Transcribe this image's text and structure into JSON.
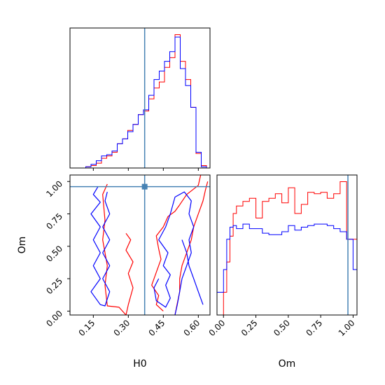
{
  "chart_data": [
    {
      "type": "histogram",
      "panel": "H0 marginal",
      "x_range": [
        0.05,
        0.65
      ],
      "truth": 0.37,
      "bin_edges": [
        0.05,
        0.0725,
        0.095,
        0.1175,
        0.14,
        0.1625,
        0.185,
        0.2075,
        0.23,
        0.2525,
        0.275,
        0.2975,
        0.32,
        0.3425,
        0.365,
        0.3875,
        0.41,
        0.4325,
        0.455,
        0.4775,
        0.5,
        0.5225,
        0.545,
        0.5675,
        0.59,
        0.6125,
        0.635
      ],
      "series": [
        {
          "color": "#ff0000",
          "values": [
            0,
            0,
            0,
            1,
            2,
            4,
            8,
            10,
            13,
            20,
            24,
            31,
            36,
            44,
            47,
            57,
            66,
            71,
            83,
            91,
            110,
            88,
            73,
            50,
            12,
            2
          ]
        },
        {
          "color": "#0000ff",
          "values": [
            0,
            0,
            0,
            1,
            3,
            6,
            10,
            11,
            14,
            20,
            24,
            30,
            36,
            44,
            48,
            60,
            73,
            80,
            88,
            96,
            108,
            82,
            68,
            50,
            13,
            1
          ]
        }
      ]
    },
    {
      "type": "contour",
      "panel": "H0 vs Om",
      "xlabel": "H0",
      "ylabel": "Om",
      "xlim": [
        0.05,
        0.65
      ],
      "ylim": [
        -0.03,
        1.05
      ],
      "xticks": [
        "0.15",
        "0.30",
        "0.45",
        "0.60"
      ],
      "yticks": [
        "0.00",
        "0.25",
        "0.50",
        "0.75",
        "1.00"
      ],
      "truth": {
        "x": 0.37,
        "y": 0.96
      },
      "series": [
        {
          "color": "#ff0000",
          "contours": [
            [
              [
                0.29,
                0.6
              ],
              [
                0.31,
                0.55
              ],
              [
                0.29,
                0.47
              ],
              [
                0.32,
                0.38
              ],
              [
                0.3,
                0.29
              ],
              [
                0.32,
                0.18
              ],
              [
                0.3,
                0.05
              ],
              [
                0.29,
                -0.03
              ]
            ],
            [
              [
                0.21,
                0.98
              ],
              [
                0.19,
                0.9
              ],
              [
                0.2,
                0.7
              ],
              [
                0.19,
                0.55
              ],
              [
                0.21,
                0.35
              ],
              [
                0.2,
                0.2
              ],
              [
                0.21,
                0.04
              ],
              [
                0.26,
                0.03
              ],
              [
                0.29,
                -0.03
              ]
            ],
            [
              [
                0.45,
                0.0
              ],
              [
                0.42,
                0.05
              ],
              [
                0.43,
                0.12
              ],
              [
                0.4,
                0.2
              ],
              [
                0.42,
                0.3
              ],
              [
                0.44,
                0.4
              ],
              [
                0.43,
                0.48
              ],
              [
                0.42,
                0.58
              ],
              [
                0.45,
                0.65
              ],
              [
                0.47,
                0.73
              ],
              [
                0.5,
                0.77
              ],
              [
                0.52,
                0.82
              ],
              [
                0.55,
                0.9
              ],
              [
                0.6,
                0.97
              ],
              [
                0.61,
                1.05
              ]
            ],
            [
              [
                0.5,
                -0.03
              ],
              [
                0.51,
                0.06
              ],
              [
                0.52,
                0.15
              ],
              [
                0.52,
                0.25
              ],
              [
                0.53,
                0.35
              ],
              [
                0.55,
                0.45
              ],
              [
                0.57,
                0.55
              ],
              [
                0.58,
                0.65
              ],
              [
                0.6,
                0.75
              ],
              [
                0.62,
                0.85
              ],
              [
                0.63,
                0.93
              ],
              [
                0.64,
                1.0
              ]
            ]
          ]
        },
        {
          "color": "#0000ff",
          "contours": [
            [
              [
                0.17,
                0.96
              ],
              [
                0.15,
                0.9
              ],
              [
                0.18,
                0.84
              ],
              [
                0.14,
                0.75
              ],
              [
                0.18,
                0.65
              ],
              [
                0.15,
                0.55
              ],
              [
                0.18,
                0.45
              ],
              [
                0.15,
                0.35
              ],
              [
                0.18,
                0.25
              ],
              [
                0.14,
                0.15
              ],
              [
                0.18,
                0.05
              ],
              [
                0.2,
                0.04
              ],
              [
                0.22,
                0.15
              ],
              [
                0.19,
                0.25
              ],
              [
                0.22,
                0.35
              ],
              [
                0.19,
                0.45
              ],
              [
                0.22,
                0.55
              ],
              [
                0.19,
                0.65
              ],
              [
                0.22,
                0.75
              ],
              [
                0.2,
                0.85
              ],
              [
                0.21,
                0.92
              ]
            ],
            [
              [
                0.43,
                0.25
              ],
              [
                0.41,
                0.18
              ],
              [
                0.42,
                0.08
              ],
              [
                0.46,
                0.03
              ],
              [
                0.48,
                0.1
              ],
              [
                0.46,
                0.2
              ],
              [
                0.48,
                0.28
              ],
              [
                0.45,
                0.35
              ],
              [
                0.47,
                0.45
              ],
              [
                0.43,
                0.55
              ],
              [
                0.46,
                0.65
              ],
              [
                0.48,
                0.75
              ],
              [
                0.5,
                0.88
              ],
              [
                0.54,
                0.92
              ],
              [
                0.57,
                0.85
              ],
              [
                0.56,
                0.75
              ],
              [
                0.58,
                0.65
              ],
              [
                0.56,
                0.55
              ],
              [
                0.57,
                0.45
              ],
              [
                0.55,
                0.35
              ],
              [
                0.53,
                0.25
              ],
              [
                0.52,
                0.15
              ],
              [
                0.51,
                0.05
              ],
              [
                0.5,
                -0.03
              ]
            ],
            [
              [
                0.53,
                0.55
              ],
              [
                0.55,
                0.45
              ],
              [
                0.56,
                0.35
              ],
              [
                0.58,
                0.25
              ],
              [
                0.6,
                0.15
              ],
              [
                0.62,
                0.05
              ]
            ]
          ]
        }
      ]
    },
    {
      "type": "histogram",
      "panel": "Om marginal",
      "xlabel": "Om",
      "x_range": [
        -0.05,
        1.03
      ],
      "xticks": [
        "0.00",
        "0.25",
        "0.50",
        "0.75",
        "1.00"
      ],
      "truth": 0.96,
      "bin_edges": [
        -0.05,
        0.0,
        0.025,
        0.05,
        0.075,
        0.1,
        0.15,
        0.2,
        0.25,
        0.3,
        0.35,
        0.4,
        0.45,
        0.5,
        0.55,
        0.6,
        0.65,
        0.7,
        0.75,
        0.8,
        0.85,
        0.9,
        0.95,
        1.0,
        1.03
      ],
      "series": [
        {
          "color": "#ff0000",
          "values": [
            0,
            15,
            35,
            52,
            67,
            72,
            75,
            77,
            64,
            75,
            77,
            80,
            74,
            84,
            67,
            73,
            81,
            80,
            81,
            77,
            80,
            88,
            50,
            50
          ]
        },
        {
          "color": "#0000ff",
          "values": [
            15,
            30,
            50,
            58,
            59,
            57,
            60,
            57,
            57,
            54,
            53,
            53,
            55,
            59,
            56,
            58,
            59,
            60,
            60,
            59,
            57,
            55,
            50,
            30
          ]
        }
      ]
    }
  ]
}
